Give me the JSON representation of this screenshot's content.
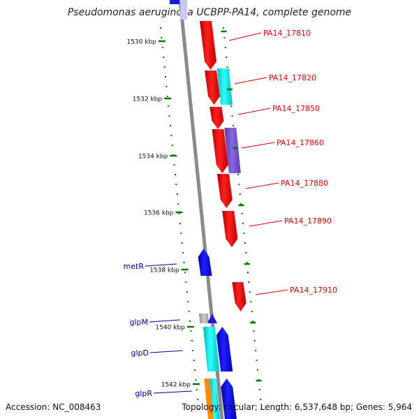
{
  "title": "Pseudomonas aeruginosa UCBPP-PA14, complete genome",
  "accession_text": "Accession: NC_008463",
  "topology_text": "Topology: circular; Length: 6,537,648 bp; Genes: 5,964",
  "colors": {
    "forward_gene": "#ff0000",
    "reverse_gene": "#0000ff",
    "cyan_gene": "#00e5e5",
    "purple_gene": "#7a55d0",
    "grey_gene": "#aaaaaa",
    "orange_gene": "#ff8c00",
    "backbone": "#888888",
    "tick": "#007700",
    "red_label": "#dd0000",
    "blue_label": "#00008b"
  },
  "ruler_ticks": [
    {
      "label": "1530 kbp"
    },
    {
      "label": "1532 kbp"
    },
    {
      "label": "1534 kbp"
    },
    {
      "label": "1536 kbp"
    },
    {
      "label": "1538 kbp"
    },
    {
      "label": "1540 kbp"
    },
    {
      "label": "1542 kbp"
    }
  ],
  "forward_labels": [
    "PA14_17810",
    "PA14_17820",
    "PA14_17850",
    "PA14_17860",
    "PA14_17880",
    "PA14_17890",
    "PA14_17910"
  ],
  "reverse_labels": [
    "metR",
    "glpM",
    "glpD",
    "glpR"
  ]
}
